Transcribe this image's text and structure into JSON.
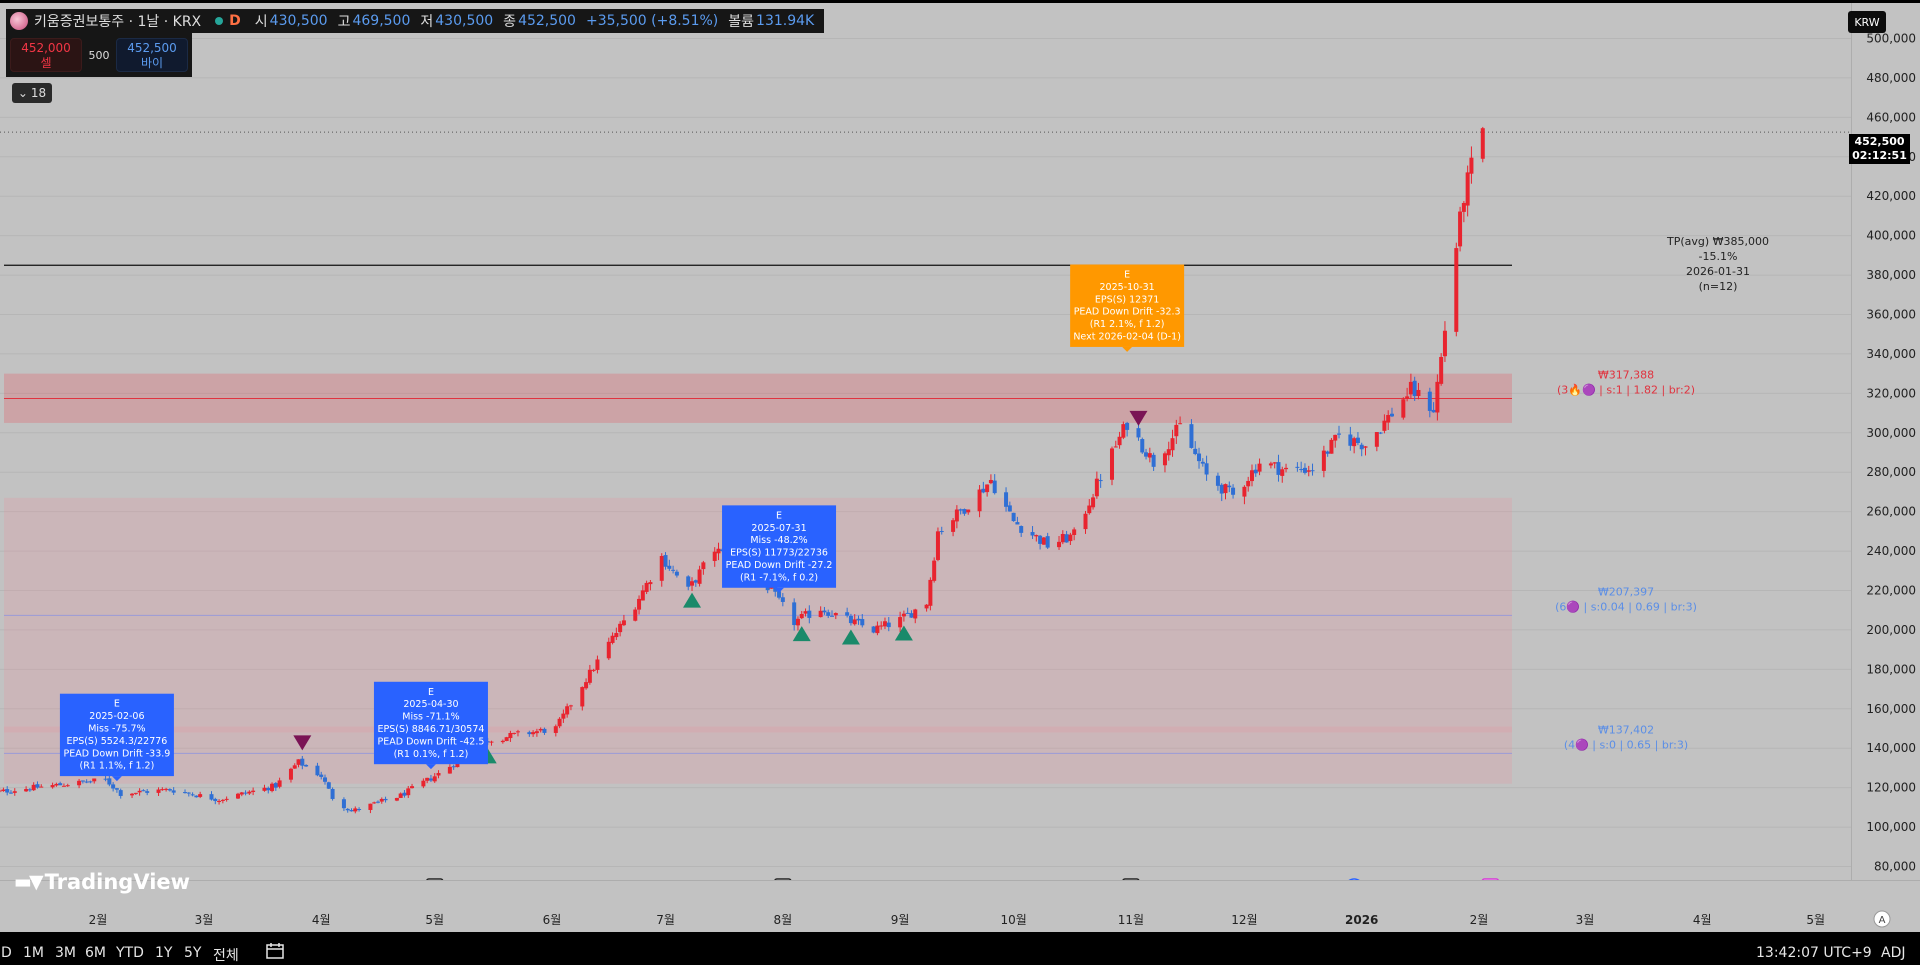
{
  "header": {
    "symbol_title": "키움증권보통주 · 1날 · KRX",
    "interval_badge": "D",
    "open_label": "시",
    "open_value": "430,500",
    "high_label": "고",
    "high_value": "469,500",
    "low_label": "저",
    "low_value": "430,500",
    "close_label": "종",
    "close_value": "452,500",
    "change_value": "+35,500 (+8.51%)",
    "volume_label": "볼륨",
    "volume_value": "131.94K"
  },
  "trade": {
    "sell_price": "452,000",
    "sell_label": "셀",
    "spread": "500",
    "buy_price": "452,500",
    "buy_label": "바이"
  },
  "collapse": {
    "count": "18"
  },
  "currency": "KRW",
  "last_price": {
    "price": "452,500",
    "countdown": "02:12:51"
  },
  "watermark": "TradingView",
  "timeframes": [
    "D",
    "1M",
    "3M",
    "6M",
    "YTD",
    "1Y",
    "5Y",
    "전체"
  ],
  "clock": "13:42:07 UTC+9",
  "adj": "ADJ",
  "colors": {
    "up": "#e8242f",
    "down": "#2f6fd4",
    "earnings_blue": "#2962ff",
    "earnings_orange": "#ff9800",
    "tp_line": "#101010",
    "zone_red": "#f23645"
  },
  "chart_data": {
    "type": "candlestick",
    "ylim": [
      70000,
      510000
    ],
    "y_ticks": [
      "500,000",
      "480,000",
      "460,000",
      "440,000",
      "420,000",
      "400,000",
      "380,000",
      "360,000",
      "340,000",
      "320,000",
      "300,000",
      "280,000",
      "260,000",
      "240,000",
      "220,000",
      "200,000",
      "180,000",
      "160,000",
      "140,000",
      "120,000",
      "100,000",
      "80,000"
    ],
    "x_ticks": [
      "2월",
      "3월",
      "4월",
      "5월",
      "6월",
      "7월",
      "8월",
      "9월",
      "10월",
      "11월",
      "12월",
      "2026",
      "2월",
      "3월",
      "4월",
      "5월"
    ],
    "close_path": [
      [
        "2025-01-02",
        117000
      ],
      [
        "2025-01-15",
        120000
      ],
      [
        "2025-02-03",
        124000
      ],
      [
        "2025-02-07",
        117000
      ],
      [
        "2025-02-20",
        119000
      ],
      [
        "2025-03-05",
        114000
      ],
      [
        "2025-03-20",
        121000
      ],
      [
        "2025-03-26",
        133000
      ],
      [
        "2025-04-01",
        126000
      ],
      [
        "2025-04-04",
        115000
      ],
      [
        "2025-04-09",
        108000
      ],
      [
        "2025-04-22",
        116000
      ],
      [
        "2025-05-02",
        127000
      ],
      [
        "2025-05-15",
        144000
      ],
      [
        "2025-05-23",
        147000
      ],
      [
        "2025-06-02",
        150000
      ],
      [
        "2025-06-09",
        172000
      ],
      [
        "2025-06-16",
        193000
      ],
      [
        "2025-06-23",
        213000
      ],
      [
        "2025-06-30",
        237000
      ],
      [
        "2025-07-07",
        220000
      ],
      [
        "2025-07-14",
        241000
      ],
      [
        "2025-07-21",
        232000
      ],
      [
        "2025-07-28",
        222000
      ],
      [
        "2025-08-04",
        204000
      ],
      [
        "2025-08-11",
        211000
      ],
      [
        "2025-08-18",
        205000
      ],
      [
        "2025-08-25",
        200000
      ],
      [
        "2025-09-01",
        205000
      ],
      [
        "2025-09-08",
        214000
      ],
      [
        "2025-09-11",
        250000
      ],
      [
        "2025-09-18",
        262000
      ],
      [
        "2025-09-25",
        276000
      ],
      [
        "2025-10-01",
        255000
      ],
      [
        "2025-10-10",
        243000
      ],
      [
        "2025-10-17",
        248000
      ],
      [
        "2025-10-24",
        278000
      ],
      [
        "2025-10-31",
        305000
      ],
      [
        "2025-11-07",
        285000
      ],
      [
        "2025-11-14",
        303000
      ],
      [
        "2025-11-21",
        278000
      ],
      [
        "2025-11-28",
        268000
      ],
      [
        "2025-12-05",
        285000
      ],
      [
        "2025-12-12",
        281000
      ],
      [
        "2025-12-19",
        282000
      ],
      [
        "2025-12-26",
        298000
      ],
      [
        "2026-01-02",
        294000
      ],
      [
        "2026-01-09",
        310000
      ],
      [
        "2026-01-14",
        322000
      ],
      [
        "2026-01-20",
        312000
      ],
      [
        "2026-01-22",
        338000
      ],
      [
        "2026-01-26",
        395000
      ],
      [
        "2026-01-28",
        420000
      ],
      [
        "2026-01-30",
        435000
      ],
      [
        "2026-02-02",
        452500
      ]
    ],
    "earnings_boxes": [
      {
        "lines": [
          "E",
          "2025-02-06",
          "Miss -75.7%",
          "EPS(S) 5524.3/22776",
          "PEAD Down Drift -33.9",
          "(R1 1.1%, f 1.2)"
        ],
        "date": "2025-02-06",
        "color": "blue"
      },
      {
        "lines": [
          "E",
          "2025-04-30",
          "Miss -71.1%",
          "EPS(S) 8846.71/30574",
          "PEAD Down Drift -42.5",
          "(R1 0.1%, f 1.2)"
        ],
        "date": "2025-04-30",
        "color": "blue"
      },
      {
        "lines": [
          "E",
          "2025-07-31",
          "Miss -48.2%",
          "EPS(S) 11773/22736",
          "PEAD Down Drift -27.2",
          "(R1 -7.1%, f 0.2)"
        ],
        "date": "2025-07-31",
        "color": "blue"
      },
      {
        "lines": [
          "E",
          "2025-10-31",
          "EPS(S) 12371",
          "PEAD Down Drift -32.3",
          "(R1 2.1%, f 1.2)",
          "Next 2026-02-04 (D-1)"
        ],
        "date": "2025-10-31",
        "color": "orange"
      }
    ],
    "target_price": {
      "value": 385000,
      "lines": [
        "TP(avg) ₩385,000",
        "-15.1%",
        "2026-01-31",
        "(n=12)"
      ]
    },
    "zones": [
      {
        "label": "₩317,388",
        "detail": "(3🔥🟣 | s:1 | 1.82 | br:2)",
        "level": 317388,
        "low": 305000,
        "high": 330000,
        "color": "red"
      },
      {
        "label": "₩207,397",
        "detail": "(6🟣 | s:0.04 | 0.69 | br:3)",
        "level": 207397,
        "low": 122000,
        "high": 267000,
        "color": "blue"
      },
      {
        "label": "₩137,402",
        "detail": "(4🟣 | s:0 | 0.65 | br:3)",
        "level": 137402,
        "low": 148000,
        "high": 151000,
        "color": "blue"
      }
    ],
    "sell_markers": [
      "2025-03-27",
      "2025-11-03"
    ],
    "buy_markers": [
      "2025-05-15",
      "2025-07-08",
      "2025-08-06",
      "2025-08-19",
      "2025-09-02"
    ],
    "event_badges": [
      {
        "text": "E",
        "date": "2025-05-01"
      },
      {
        "text": "E",
        "date": "2025-08-01"
      },
      {
        "text": "E",
        "date": "2025-11-01"
      },
      {
        "text": "D",
        "date": "2025-12-30"
      },
      {
        "text": "E",
        "date": "2026-02-04"
      }
    ]
  }
}
